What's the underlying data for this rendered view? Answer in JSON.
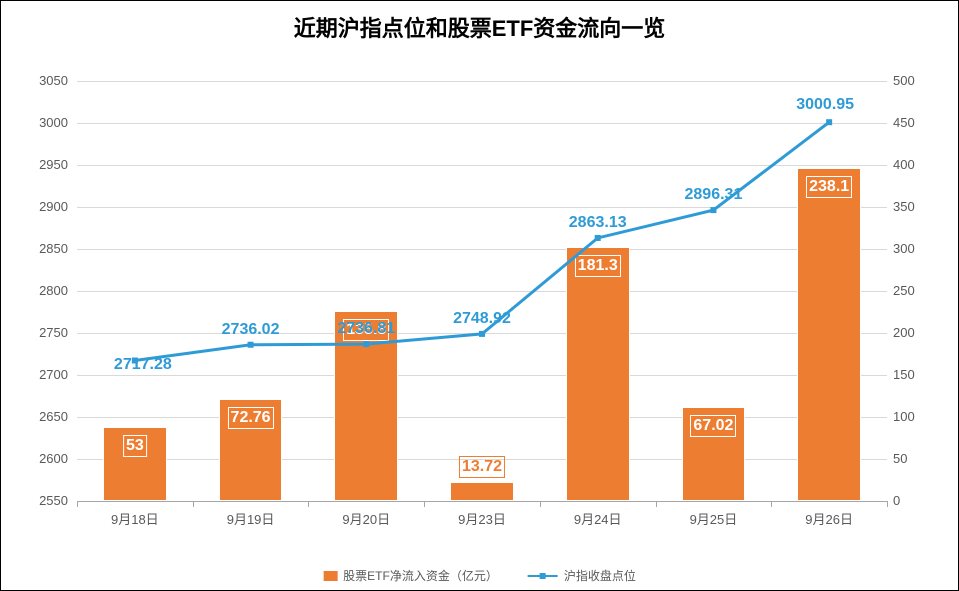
{
  "chart": {
    "title": "近期沪指点位和股票ETF资金流向一览",
    "title_fontsize": 22,
    "background_color": "#ffffff",
    "grid_color": "#d9d9d9",
    "axis_label_color": "#595959",
    "axis_label_fontsize": 13,
    "categories": [
      "9月18日",
      "9月19日",
      "9月20日",
      "9月23日",
      "9月24日",
      "9月25日",
      "9月26日"
    ],
    "bar_series": {
      "name": "股票ETF净流入资金（亿元）",
      "color": "#ed7d31",
      "values": [
        53,
        72.76,
        135.8,
        13.72,
        181.3,
        67.02,
        238.1
      ],
      "value_labels": [
        "53",
        "72.76",
        "135.8",
        "13.72",
        "181.3",
        "67.02",
        "238.1"
      ],
      "label_fontsize": 16,
      "bar_width_ratio": 0.55
    },
    "line_series": {
      "name": "沪指收盘点位",
      "color": "#2e9bd6",
      "line_width": 3,
      "marker_size": 6,
      "values": [
        2717.28,
        2736.02,
        2736.81,
        2748.92,
        2863.13,
        2896.31,
        3000.95
      ],
      "value_labels": [
        "2717.28",
        "2736.02",
        "2736.81",
        "2748.92",
        "2863.13",
        "2896.31",
        "3000.95"
      ],
      "label_fontsize": 16
    },
    "y_left": {
      "min": 2550,
      "max": 3050,
      "step": 50
    },
    "y_right": {
      "min": 0,
      "max": 300,
      "step": 50
    },
    "legend_fontsize": 12
  }
}
